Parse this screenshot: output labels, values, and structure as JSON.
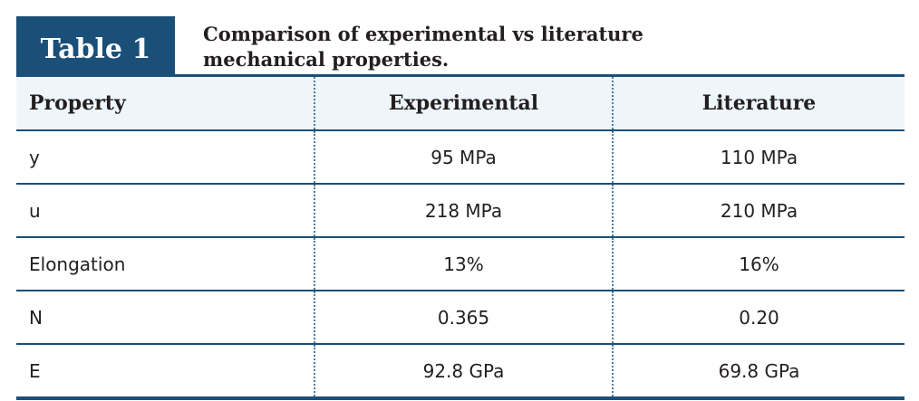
{
  "table_label": "Table 1",
  "caption": "Comparison of experimental vs literature mechanical properties.",
  "headers": [
    "Property",
    "Experimental",
    "Literature"
  ],
  "rows": [
    [
      "y",
      "95 MPa",
      "110 MPa"
    ],
    [
      "u",
      "218 MPa",
      "210 MPa"
    ],
    [
      "Elongation",
      "13%",
      "16%"
    ],
    [
      "N",
      "0.365",
      "0.20"
    ],
    [
      "E",
      "92.8 GPa",
      "69.8 GPa"
    ]
  ]
}
